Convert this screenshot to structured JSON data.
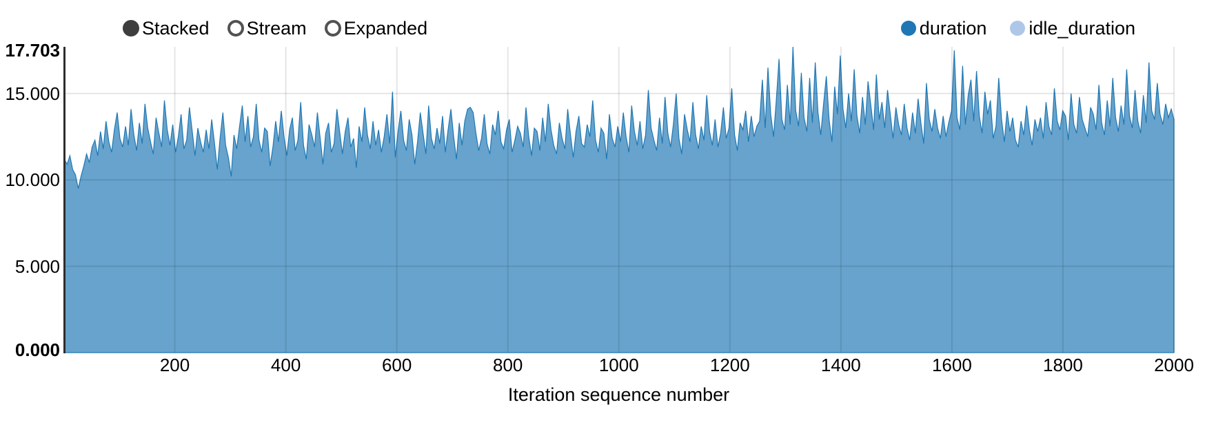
{
  "controls": {
    "options": [
      {
        "label": "Stacked",
        "selected": true
      },
      {
        "label": "Stream",
        "selected": false
      },
      {
        "label": "Expanded",
        "selected": false
      }
    ]
  },
  "legend": {
    "items": [
      {
        "label": "duration",
        "color": "#1f77b4"
      },
      {
        "label": "idle_duration",
        "color": "#aec7e8"
      }
    ]
  },
  "chart_data": {
    "type": "area",
    "variant": "stacked",
    "title": "",
    "xlabel": "Iteration sequence number",
    "ylabel": "",
    "xlim": [
      0,
      2000
    ],
    "ylim": [
      0,
      17.703
    ],
    "grid": true,
    "legend_position": "top-right",
    "x_ticks": [
      200,
      400,
      600,
      800,
      1000,
      1200,
      1400,
      1600,
      1800,
      2000
    ],
    "y_ticks": [
      {
        "value": 0,
        "label": "0.000",
        "bold": true
      },
      {
        "value": 5,
        "label": "5.000",
        "bold": false
      },
      {
        "value": 10,
        "label": "10.000",
        "bold": false
      },
      {
        "value": 15,
        "label": "15.000",
        "bold": false
      },
      {
        "value": 17.703,
        "label": "17.703",
        "bold": true
      }
    ],
    "x_start": 1,
    "x_end": 2000,
    "series": [
      {
        "name": "duration",
        "color": "#1f77b4",
        "fill_opacity": 0.68,
        "values": [
          11.2,
          10.9,
          11.4,
          10.6,
          10.3,
          9.5,
          10.2,
          10.8,
          11.5,
          11.0,
          11.9,
          12.3,
          11.4,
          12.8,
          11.8,
          13.4,
          12.2,
          11.6,
          12.9,
          13.9,
          12.4,
          11.9,
          13.1,
          12.0,
          14.1,
          12.6,
          11.7,
          13.3,
          12.1,
          14.4,
          13.0,
          12.2,
          11.5,
          13.6,
          12.7,
          11.9,
          14.6,
          12.9,
          12.0,
          13.2,
          11.6,
          12.5,
          13.8,
          11.8,
          12.3,
          14.2,
          12.8,
          11.4,
          13.0,
          12.2,
          11.6,
          12.9,
          11.8,
          13.5,
          12.1,
          10.6,
          12.4,
          13.9,
          12.0,
          11.3,
          10.2,
          12.6,
          11.8,
          13.1,
          14.3,
          12.2,
          13.7,
          11.9,
          12.5,
          14.4,
          12.3,
          11.6,
          13.0,
          12.8,
          10.8,
          11.9,
          13.4,
          12.2,
          14.0,
          12.5,
          11.4,
          12.9,
          13.6,
          11.7,
          12.3,
          14.5,
          12.0,
          11.2,
          13.2,
          12.6,
          11.9,
          13.9,
          12.4,
          10.9,
          12.7,
          13.3,
          11.6,
          12.1,
          14.1,
          12.8,
          11.5,
          12.8,
          13.6,
          11.9,
          12.4,
          10.7,
          13.1,
          12.2,
          14.2,
          12.6,
          11.8,
          13.4,
          12.0,
          12.9,
          11.6,
          12.5,
          13.8,
          12.1,
          15.1,
          11.3,
          12.8,
          14.0,
          12.3,
          11.7,
          13.5,
          12.6,
          10.9,
          12.2,
          13.9,
          12.7,
          11.5,
          14.3,
          12.4,
          11.8,
          13.0,
          12.1,
          13.7,
          11.6,
          12.9,
          14.1,
          12.5,
          11.2,
          13.3,
          12.0,
          13.4,
          14.1,
          14.2,
          13.9,
          12.7,
          11.7,
          12.4,
          13.8,
          12.1,
          11.5,
          13.2,
          12.6,
          14.0,
          12.2,
          11.8,
          12.9,
          13.5,
          11.6,
          12.3,
          13.1,
          12.7,
          11.9,
          14.2,
          12.5,
          11.4,
          13.0,
          12.8,
          11.7,
          13.6,
          12.2,
          14.4,
          12.9,
          12.0,
          11.5,
          13.3,
          12.4,
          11.8,
          14.1,
          12.6,
          11.3,
          12.8,
          13.7,
          12.1,
          11.9,
          13.2,
          12.5,
          14.6,
          12.3,
          11.6,
          13.0,
          12.7,
          11.2,
          13.8,
          12.4,
          11.9,
          13.1,
          12.2,
          13.9,
          12.5,
          11.6,
          14.3,
          12.8,
          12.0,
          13.4,
          11.8,
          12.6,
          15.2,
          13.0,
          12.3,
          11.7,
          13.6,
          12.1,
          14.8,
          12.7,
          11.9,
          13.2,
          15.0,
          12.4,
          11.5,
          13.8,
          12.9,
          12.2,
          14.5,
          12.6,
          11.8,
          13.1,
          12.3,
          14.9,
          12.8,
          12.0,
          13.5,
          11.9,
          12.7,
          14.2,
          12.4,
          13.0,
          15.3,
          12.6,
          11.7,
          13.3,
          12.9,
          14.0,
          12.2,
          13.7,
          12.5,
          13.1,
          13.4,
          15.8,
          13.0,
          16.5,
          13.8,
          12.5,
          14.6,
          17.0,
          13.5,
          12.9,
          15.5,
          13.2,
          17.703,
          14.0,
          13.1,
          16.2,
          13.6,
          12.8,
          15.9,
          13.3,
          16.8,
          13.9,
          12.6,
          14.4,
          16.0,
          13.5,
          12.2,
          15.4,
          13.8,
          17.2,
          14.1,
          13.0,
          15.0,
          13.4,
          16.4,
          13.7,
          12.7,
          14.8,
          13.2,
          15.7,
          14.3,
          12.9,
          16.1,
          13.5,
          14.5,
          13.0,
          15.2,
          13.8,
          12.4,
          14.2,
          13.2,
          12.6,
          14.4,
          13.0,
          12.3,
          13.9,
          12.7,
          14.7,
          13.3,
          12.1,
          15.6,
          13.5,
          12.8,
          14.1,
          13.0,
          12.4,
          13.7,
          12.5,
          13.3,
          14.0,
          17.5,
          13.6,
          12.9,
          16.6,
          13.2,
          14.9,
          15.8,
          13.4,
          16.3,
          13.7,
          12.7,
          15.1,
          13.8,
          14.6,
          12.4,
          13.1,
          15.9,
          13.5,
          12.2,
          14.0,
          12.8,
          13.6,
          12.3,
          11.9,
          13.4,
          12.6,
          14.3,
          12.9,
          12.0,
          13.5,
          12.8,
          13.6,
          12.4,
          14.5,
          13.1,
          12.6,
          15.3,
          13.4,
          12.9,
          14.0,
          13.7,
          12.3,
          15.0,
          13.2,
          12.7,
          14.8,
          13.5,
          13.0,
          12.5,
          14.2,
          13.8,
          12.9,
          15.5,
          13.3,
          12.6,
          14.6,
          13.1,
          15.9,
          13.6,
          12.8,
          14.3,
          13.2,
          16.4,
          13.7,
          13.0,
          15.2,
          13.4,
          12.7,
          14.9,
          13.3,
          16.8,
          14.0,
          13.5,
          15.6,
          13.8,
          13.2,
          14.4,
          13.6,
          14.1,
          13.5
        ]
      },
      {
        "name": "idle_duration",
        "color": "#aec7e8",
        "fill_opacity": 0.68,
        "values_constant": 0
      }
    ]
  }
}
